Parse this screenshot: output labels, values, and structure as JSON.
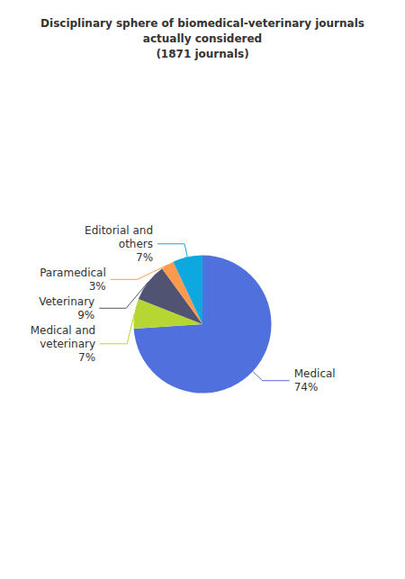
{
  "chart_data": {
    "type": "pie",
    "title": "Disciplinary sphere of biomedical-veterinary journals\nactually considered\n(1871 journals)",
    "categories": [
      "Medical",
      "Medical and\nveterinary",
      "Veterinary",
      "Paramedical",
      "Editorial and\nothers"
    ],
    "values": [
      74,
      7,
      9,
      3,
      7
    ],
    "value_labels": [
      "74%",
      "7%",
      "9%",
      "3%",
      "7%"
    ],
    "data_labels": true,
    "legend": false
  }
}
